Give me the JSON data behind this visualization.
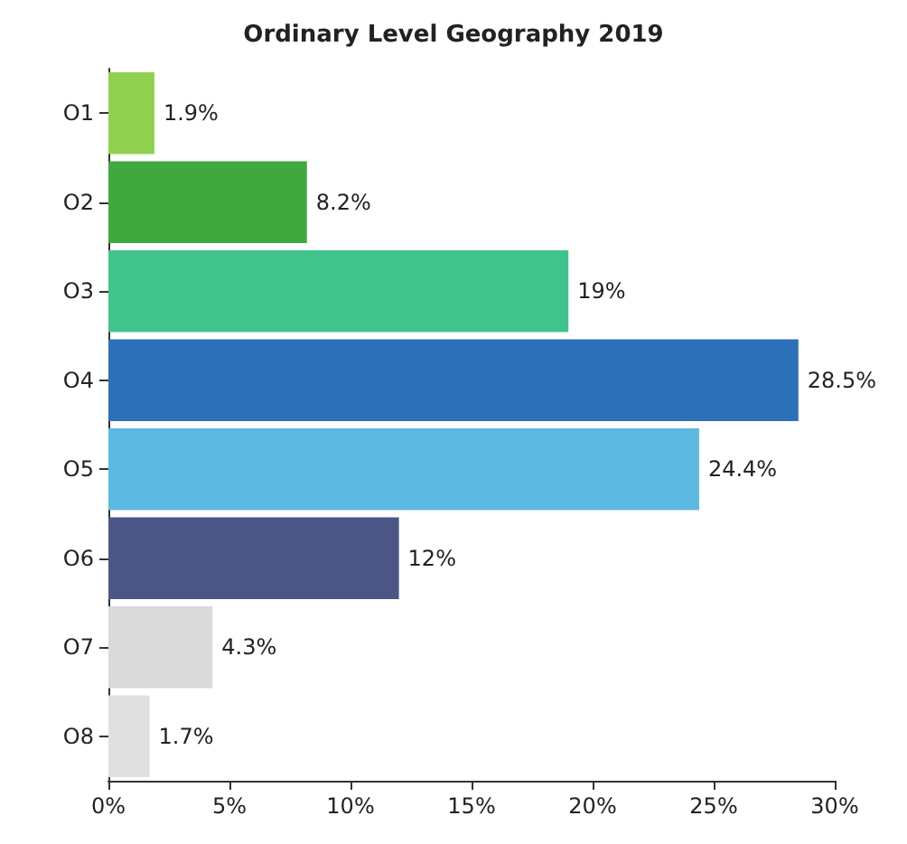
{
  "chart_data": {
    "type": "bar",
    "orientation": "horizontal",
    "title": "Ordinary Level Geography 2019",
    "categories": [
      "O1",
      "O2",
      "O3",
      "O4",
      "O5",
      "O6",
      "O7",
      "O8"
    ],
    "values": [
      1.9,
      8.2,
      19,
      28.5,
      24.4,
      12,
      4.3,
      1.7
    ],
    "colors": [
      "#8fd14f",
      "#3fa83f",
      "#40c48c",
      "#2b70b9",
      "#5cb9e1",
      "#4b5686",
      "#dadada",
      "#e0e0e0"
    ],
    "value_labels": [
      "1.9%",
      "8.2%",
      "19%",
      "28.5%",
      "24.4%",
      "12%",
      "4.3%",
      "1.7%"
    ],
    "xlim": [
      0,
      30
    ],
    "xticks": [
      {
        "value": 0,
        "label": "0%"
      },
      {
        "value": 5,
        "label": "5%"
      },
      {
        "value": 10,
        "label": "10%"
      },
      {
        "value": 15,
        "label": "15%"
      },
      {
        "value": 20,
        "label": "20%"
      },
      {
        "value": 25,
        "label": "25%"
      },
      {
        "value": 30,
        "label": "30%"
      }
    ],
    "grid": false
  }
}
